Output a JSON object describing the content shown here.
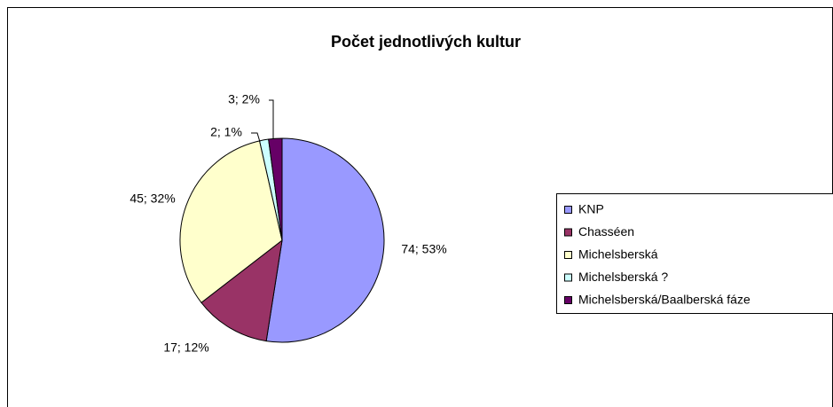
{
  "chart_data": {
    "type": "pie",
    "title": "Počet jednotlivých kultur",
    "categories": [
      "KNP",
      "Chasséen",
      "Michelsberská",
      "Michelsberská ?",
      "Michelsberská/Baalberská fáze"
    ],
    "values": [
      74,
      17,
      45,
      2,
      3
    ],
    "value_labels": [
      "74; 53%",
      "17; 12%",
      "45; 32%",
      "2; 1%",
      "3; 2%"
    ],
    "colors": [
      "#9999ff",
      "#993366",
      "#ffffcc",
      "#ccffff",
      "#660066"
    ],
    "legend": "right"
  }
}
